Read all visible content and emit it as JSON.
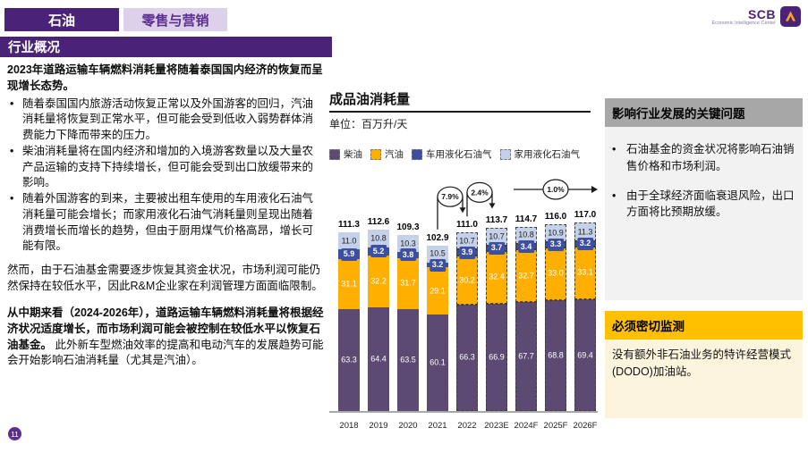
{
  "header": {
    "tab_primary": "石油",
    "tab_secondary": "零售与营销",
    "section_title": "行业概况",
    "logo_text": "SCB",
    "logo_subtext": "Economic Intelligence Center"
  },
  "left_column": {
    "intro_bold": "2023年道路运输车辆燃料消耗量将随着泰国国内经济的恢复而呈现增长态势。",
    "bullets": [
      "随着泰国国内旅游活动恢复正常以及外国游客的回归，汽油消耗量将恢复到正常水平，但可能会受到低收入弱势群体消费能力下降而带来的压力。",
      "柴油消耗量将在国内经济和增加的入境游客数量以及大量农产品运输的支持下持续增长，但可能会受到出口放缓带来的影响。",
      "随着外国游客的到来，主要被出租车使用的车用液化石油气消耗量可能会增长；而家用液化石油气消耗量则呈现出随着消费增长而增长的趋势，但由于厨用煤气价格高昂，增长可能有限。"
    ],
    "para_regular": "然而，由于石油基金需要逐步恢复其资金状况，市场利润可能仍然保持在较低水平，因此R&M企业家在利润管理方面面临限制。",
    "para_bold": "从中期来看（2024-2026年），道路运输车辆燃料消耗量将根据经济状况适度增长，而市场利润可能会被控制在较低水平以恢复石油基金。",
    "para_bold_tail": "此外新车型燃油效率的提高和电动汽车的发展趋势可能会开始影响石油消耗量（尤其是汽油）。"
  },
  "right_column": {
    "key_issues_title": "影响行业发展的关键问题",
    "key_issues_bullets": [
      "石油基金的资金状况将影响石油销售价格和市场利润。",
      "由于全球经济面临衰退风险，出口方面将比预期放缓。"
    ],
    "watch_title": "必须密切监测",
    "watch_body": "没有额外非石油业务的特许经营模式(DODO)加油站。"
  },
  "footer": {
    "page_number": "11"
  },
  "colors": {
    "brand_purple": "#4A2278",
    "light_purple": "#DCD0EA",
    "diesel": "#5D4A73",
    "gasoline": "#FFAF00",
    "auto_lpg": "#3D4FA0",
    "household_lpg": "#C5D1E9",
    "gray_header": "#A7A7A7",
    "yellow_header": "#FFC000"
  },
  "chart_data": {
    "type": "stacked-bar",
    "title": "成品油消耗量",
    "unit_label": "单位：百万升/天",
    "categories": [
      "2018",
      "2019",
      "2020",
      "2021",
      "2022",
      "2023E",
      "2024F",
      "2025F",
      "2026F"
    ],
    "totals": [
      "111.3",
      "112.6",
      "109.3",
      "102.9",
      "111.0",
      "113.7",
      "114.7",
      "116.0",
      "117.0"
    ],
    "series": [
      {
        "name": "柴油",
        "color": "#5D4A73",
        "label_color": "#ffffff",
        "values": [
          "63.3",
          "64.4",
          "63.5",
          "60.1",
          "66.3",
          "66.9",
          "67.7",
          "68.8",
          "69.4"
        ]
      },
      {
        "name": "汽油",
        "color": "#FFAF00",
        "label_color": "#ffffff",
        "values": [
          "31.1",
          "32.2",
          "31.7",
          "29.1",
          "30.2",
          "32.4",
          "32.7",
          "33.0",
          "33.1"
        ]
      },
      {
        "name": "车用液化石油气",
        "color": "#3D4FA0",
        "label_color": "#ffffff",
        "values": [
          "5.9",
          "5.2",
          "3.8",
          "3.2",
          "3.9",
          "3.7",
          "3.4",
          "3.3",
          "3.2"
        ]
      },
      {
        "name": "家用液化石油气",
        "color": "#C5D1E9",
        "label_color": "#222222",
        "values": [
          "11.0",
          "10.8",
          "10.3",
          "10.5",
          "10.7",
          "10.7",
          "10.8",
          "10.9",
          "11.3"
        ]
      }
    ],
    "dashed_from_index": 4,
    "annotations": [
      {
        "label": "7.9%",
        "type": "elbow",
        "from": 3,
        "to": 4
      },
      {
        "label": "2.4%",
        "type": "elbow",
        "from": 4,
        "to": 5
      },
      {
        "label": "1.0%",
        "type": "horizontal",
        "from": 6,
        "to": 8
      }
    ],
    "legend_position": "top",
    "grid": false
  }
}
